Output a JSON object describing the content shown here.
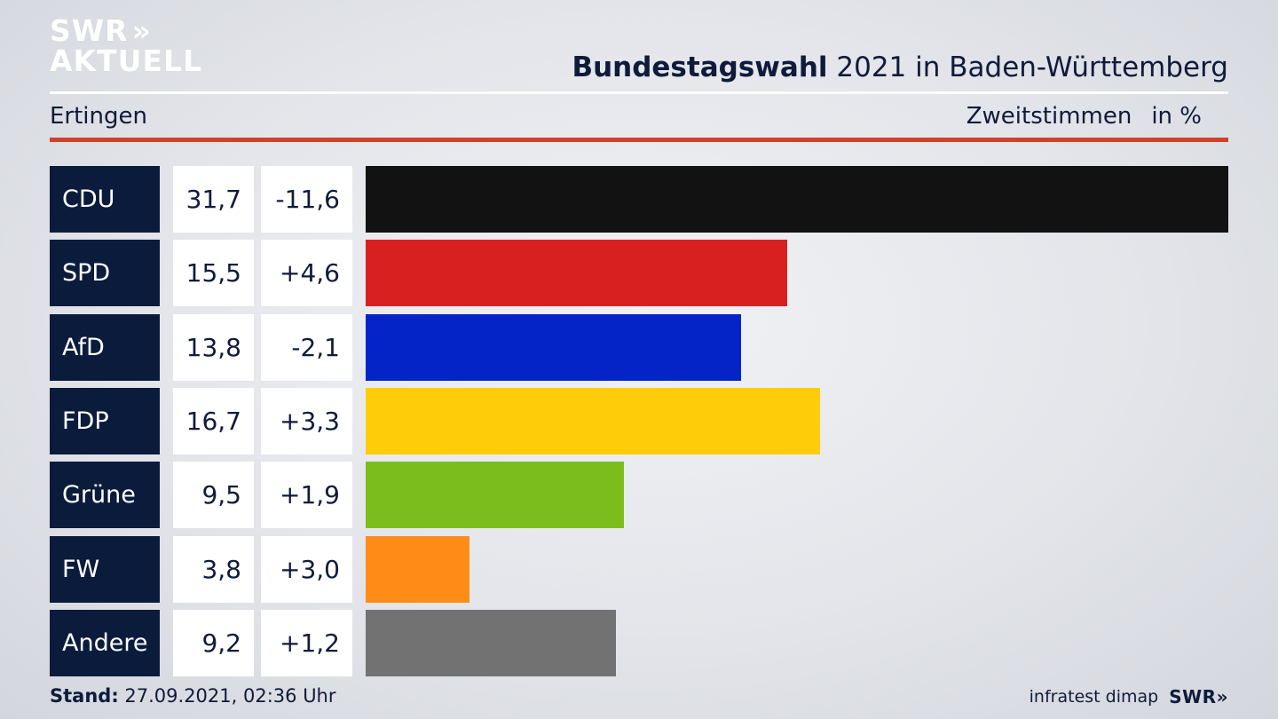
{
  "logo": {
    "line1": "SWR",
    "arrows": "»",
    "line2": "AKTUELL"
  },
  "title": {
    "bold": "Bundestagswahl",
    "rest": "2021 in Baden-Württemberg"
  },
  "subtitle": "Ertingen",
  "measure": {
    "label": "Zweitstimmen",
    "unit": "in %"
  },
  "chart_data": {
    "type": "bar",
    "orientation": "horizontal",
    "categories": [
      "CDU",
      "SPD",
      "AfD",
      "FDP",
      "Grüne",
      "FW",
      "Andere"
    ],
    "values": [
      31.7,
      15.5,
      13.8,
      16.7,
      9.5,
      3.8,
      9.2
    ],
    "value_labels": [
      "31,7",
      "15,5",
      "13,8",
      "16,7",
      "9,5",
      "3,8",
      "9,2"
    ],
    "diff_labels": [
      "-11,6",
      "+4,6",
      "-2,1",
      "+3,3",
      "+1,9",
      "+3,0",
      "+1,2"
    ],
    "colors": [
      "#121212",
      "#d82020",
      "#0424c8",
      "#ffcc0a",
      "#7cbd1e",
      "#ff8c17",
      "#727273"
    ],
    "xlim": [
      0,
      31.7
    ],
    "grid": false,
    "legend": "none"
  },
  "footer": {
    "stand_label": "Stand:",
    "stand_value": "27.09.2021, 02:36 Uhr",
    "source": "infratest dimap",
    "brand": "SWR»"
  }
}
